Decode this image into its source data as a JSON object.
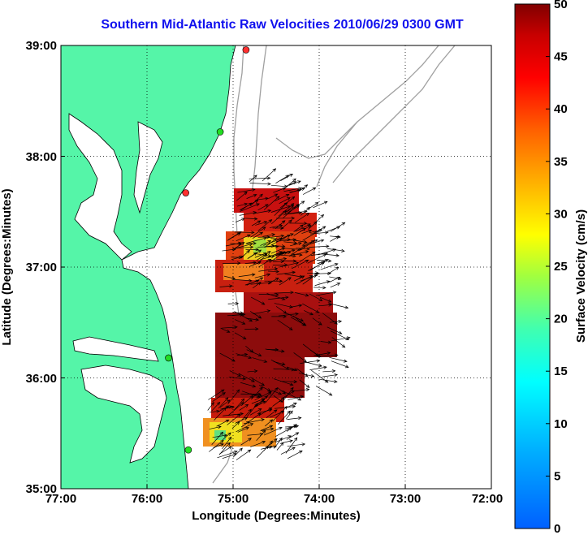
{
  "title": "Southern Mid-Atlantic Raw Velocities 2010/06/29 0300 GMT",
  "map": {
    "xlabel": "Longitude (Degrees:Minutes)",
    "ylabel": "Latitude (Degrees:Minutes)",
    "lon_ticks": [
      "77:00",
      "76:00",
      "75:00",
      "74:00",
      "73:00",
      "72:00"
    ],
    "lat_ticks": [
      "39:00",
      "38:00",
      "37:00",
      "36:00",
      "35:00"
    ],
    "lon_range": [
      -77,
      -72
    ],
    "lat_range": [
      35,
      39
    ],
    "land_color": "#55f5a8",
    "grid": true
  },
  "colorbar": {
    "label": "Surface Velocity (cm/s)",
    "ticks": [
      "50",
      "45",
      "40",
      "35",
      "30",
      "25",
      "20",
      "15",
      "10",
      "5",
      "0"
    ],
    "range": [
      0,
      50
    ],
    "colormap": [
      "#0000ff",
      "#00c0ff",
      "#00ffc0",
      "#80ff40",
      "#ffff00",
      "#ffb000",
      "#ff6000",
      "#ff0000",
      "#c00000",
      "#800000"
    ]
  },
  "stations": [
    {
      "color": "#ff3030",
      "lon": -74.85,
      "lat": 38.96
    },
    {
      "color": "#22dd22",
      "lon": -75.15,
      "lat": 38.22
    },
    {
      "color": "#ff3030",
      "lon": -75.55,
      "lat": 37.67
    },
    {
      "color": "#22dd22",
      "lon": -75.75,
      "lat": 36.18
    },
    {
      "color": "#22dd22",
      "lon": -75.52,
      "lat": 35.35
    }
  ]
}
